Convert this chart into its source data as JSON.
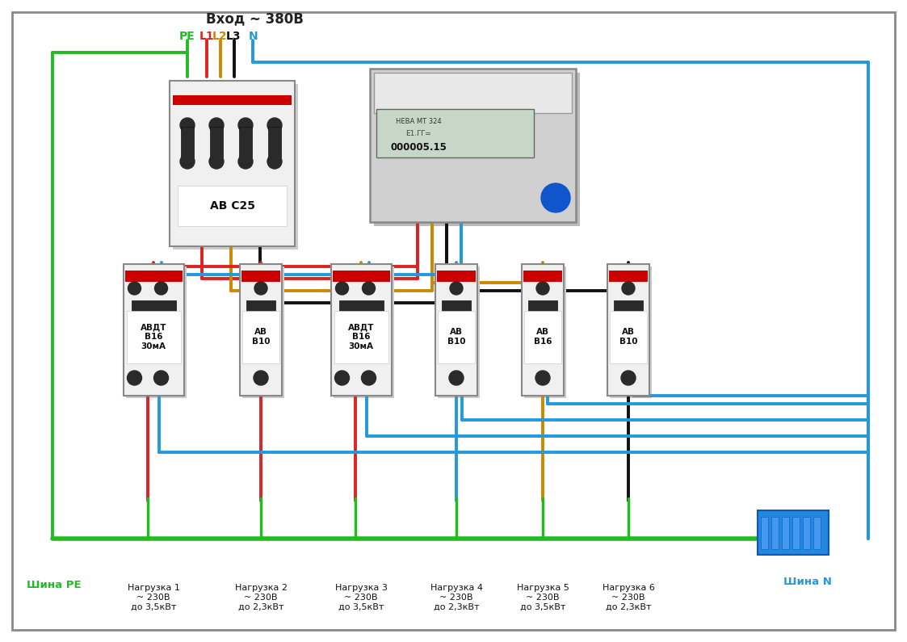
{
  "bg_color": "#ffffff",
  "border_color": "#888888",
  "input_label": "Вход ~ 380В",
  "phase_labels": [
    "PE",
    "L1",
    "L2",
    "L3",
    "N"
  ],
  "phase_colors": [
    "#22bb22",
    "#dd2222",
    "#cc8800",
    "#111111",
    "#2299dd"
  ],
  "main_breaker_label": "АВ С25",
  "sub_breaker_labels": [
    "АВДТ\nВ16\n30мА",
    "АВ\nВ10",
    "АВДТ\nВ16\n30мА",
    "АВ\nВ10",
    "АВ\nВ16",
    "АВ\nВ10"
  ],
  "load_labels": [
    "Нагрузка 1\n~ 230В\nдо 3,5кВт",
    "Нагрузка 2\n~ 230В\nдо 2,3кВт",
    "Нагрузка 3\n~ 230В\nдо 3,5кВт",
    "Нагрузка 4\n~ 230В\nдо 2,3кВт",
    "Нагрузка 5\n~ 230В\nдо 3,5кВт",
    "Нагрузка 6\n~ 230В\nдо 2,3кВт"
  ],
  "shina_pe": "Шина РЕ",
  "shina_n": "Шина N",
  "wire_red": "#dd2222",
  "wire_blue": "#2299dd",
  "wire_green": "#22bb22",
  "wire_orange": "#cc8800",
  "wire_black": "#111111",
  "device_face": "#f0f0f0",
  "device_face2": "#e8e8e8",
  "device_edge": "#888888",
  "abb_red": "#cc0000",
  "toggle_dark": "#1a1a1a",
  "handle_color": "#2a2a2a",
  "label_bg": "#ffffff",
  "meter_face": "#c8c8c8",
  "meter_display_bg": "#b0c4b0",
  "n_terminal_blue": "#3399ee",
  "n_terminal_edge": "#1166cc"
}
